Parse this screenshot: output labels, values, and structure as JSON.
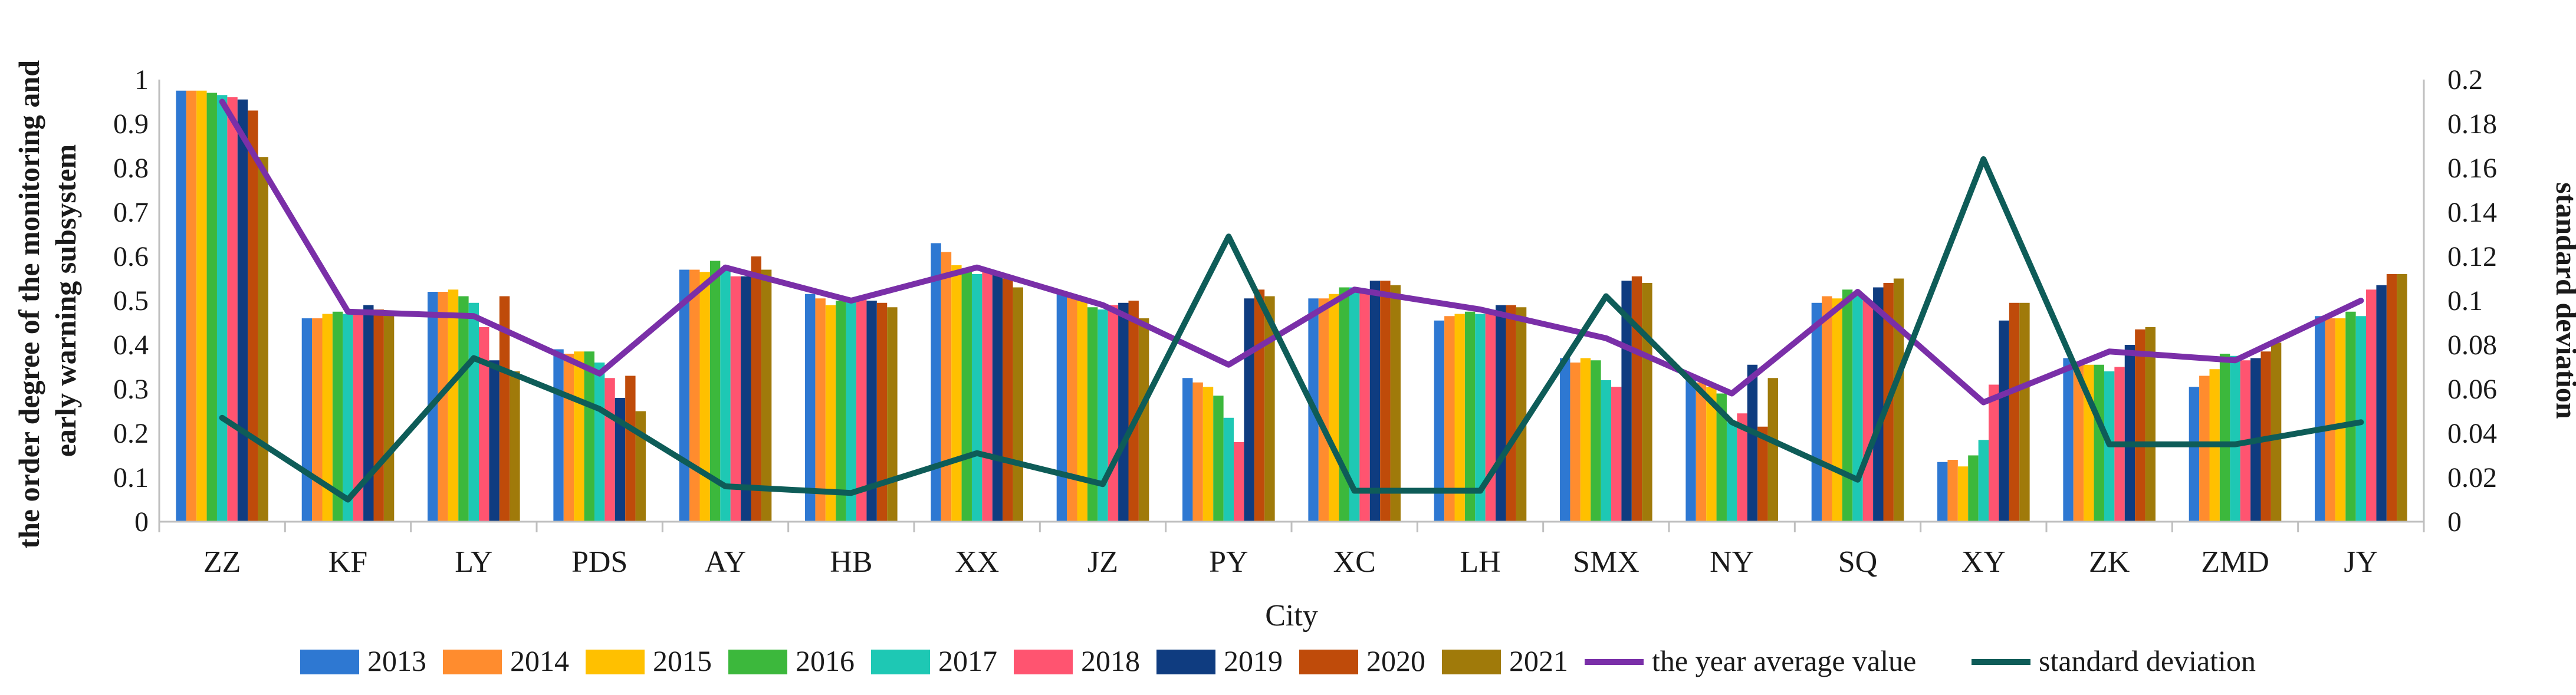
{
  "chart_data": {
    "type": "bar",
    "xlabel": "City",
    "ylabel": "the order degree of the monitoring and early warning subsystem",
    "ylabel_lines": [
      "the order degree of the monitoring and",
      "early warning subsystem"
    ],
    "y2label": "standard deviation",
    "ylim": [
      0,
      1
    ],
    "y2lim": [
      0,
      0.2
    ],
    "yticks": [
      "0",
      "0.1",
      "0.2",
      "0.3",
      "0.4",
      "0.5",
      "0.6",
      "0.7",
      "0.8",
      "0.9",
      "1"
    ],
    "y2ticks": [
      "0",
      "0.02",
      "0.04",
      "0.06",
      "0.08",
      "0.1",
      "0.12",
      "0.14",
      "0.16",
      "0.18",
      "0.2"
    ],
    "grid": false,
    "legend_position": "bottom",
    "categories": [
      "ZZ",
      "KF",
      "LY",
      "PDS",
      "AY",
      "HB",
      "XX",
      "JZ",
      "PY",
      "XC",
      "LH",
      "SMX",
      "NY",
      "SQ",
      "XY",
      "ZK",
      "ZMD",
      "JY"
    ],
    "series": [
      {
        "name": "2013",
        "color": "#2e78d2",
        "values": [
          0.975,
          0.46,
          0.52,
          0.39,
          0.57,
          0.515,
          0.63,
          0.515,
          0.325,
          0.505,
          0.455,
          0.37,
          0.325,
          0.495,
          0.135,
          0.37,
          0.305,
          0.465
        ]
      },
      {
        "name": "2014",
        "color": "#ff8c2e",
        "values": [
          0.975,
          0.46,
          0.52,
          0.38,
          0.57,
          0.505,
          0.61,
          0.51,
          0.315,
          0.505,
          0.465,
          0.36,
          0.315,
          0.51,
          0.14,
          0.36,
          0.33,
          0.46
        ]
      },
      {
        "name": "2015",
        "color": "#ffc000",
        "values": [
          0.975,
          0.47,
          0.525,
          0.385,
          0.565,
          0.49,
          0.58,
          0.5,
          0.305,
          0.515,
          0.47,
          0.37,
          0.305,
          0.505,
          0.125,
          0.355,
          0.345,
          0.46
        ]
      },
      {
        "name": "2016",
        "color": "#3cb83c",
        "values": [
          0.97,
          0.475,
          0.51,
          0.385,
          0.59,
          0.5,
          0.565,
          0.485,
          0.285,
          0.53,
          0.475,
          0.365,
          0.29,
          0.525,
          0.15,
          0.355,
          0.38,
          0.475
        ]
      },
      {
        "name": "2017",
        "color": "#1ec8b4",
        "values": [
          0.965,
          0.47,
          0.495,
          0.36,
          0.57,
          0.505,
          0.56,
          0.48,
          0.235,
          0.53,
          0.47,
          0.32,
          0.225,
          0.515,
          0.185,
          0.34,
          0.375,
          0.465
        ]
      },
      {
        "name": "2018",
        "color": "#ff5470",
        "values": [
          0.96,
          0.47,
          0.44,
          0.325,
          0.555,
          0.505,
          0.57,
          0.49,
          0.18,
          0.525,
          0.47,
          0.305,
          0.245,
          0.5,
          0.31,
          0.35,
          0.365,
          0.525
        ]
      },
      {
        "name": "2019",
        "color": "#0f3c80",
        "values": [
          0.955,
          0.49,
          0.365,
          0.28,
          0.555,
          0.5,
          0.565,
          0.495,
          0.505,
          0.545,
          0.49,
          0.545,
          0.355,
          0.53,
          0.455,
          0.4,
          0.37,
          0.535
        ]
      },
      {
        "name": "2020",
        "color": "#bf4b0a",
        "values": [
          0.93,
          0.48,
          0.51,
          0.33,
          0.6,
          0.495,
          0.55,
          0.5,
          0.525,
          0.545,
          0.49,
          0.555,
          0.215,
          0.54,
          0.495,
          0.435,
          0.385,
          0.56
        ]
      },
      {
        "name": "2021",
        "color": "#a07a0a",
        "values": [
          0.825,
          0.475,
          0.34,
          0.25,
          0.57,
          0.485,
          0.53,
          0.46,
          0.51,
          0.535,
          0.485,
          0.54,
          0.325,
          0.55,
          0.495,
          0.44,
          0.405,
          0.56
        ]
      }
    ],
    "lines": [
      {
        "name": "the year average value",
        "axis": "left",
        "color": "#7a2fa8",
        "values": [
          0.95,
          0.475,
          0.465,
          0.335,
          0.575,
          0.5,
          0.575,
          0.49,
          0.355,
          0.525,
          0.48,
          0.415,
          0.29,
          0.52,
          0.27,
          0.385,
          0.365,
          0.5
        ]
      },
      {
        "name": "standard deviation",
        "axis": "right",
        "color": "#0e5c58",
        "values": [
          0.047,
          0.01,
          0.074,
          0.051,
          0.016,
          0.013,
          0.031,
          0.017,
          0.129,
          0.014,
          0.014,
          0.102,
          0.045,
          0.019,
          0.164,
          0.035,
          0.035,
          0.045
        ]
      }
    ]
  }
}
